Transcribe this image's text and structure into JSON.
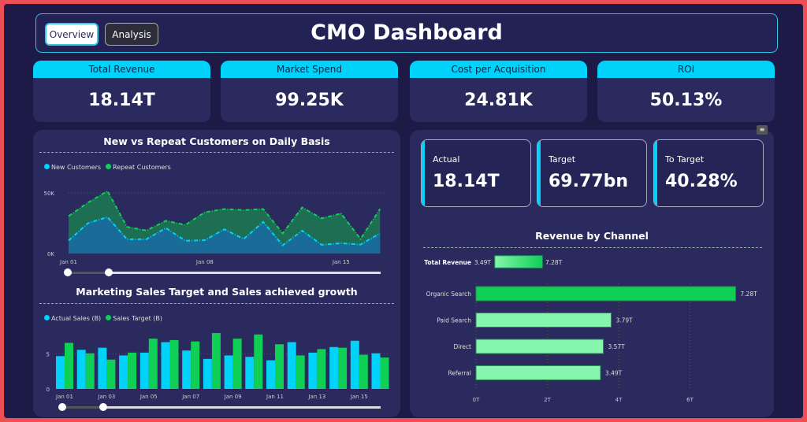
{
  "header": {
    "title": "CMO Dashboard",
    "tabs": [
      "Overview",
      "Analysis"
    ]
  },
  "kpis": [
    {
      "label": "Total Revenue",
      "value": "18.14T"
    },
    {
      "label": "Market Spend",
      "value": "99.25K"
    },
    {
      "label": "Cost per Acquisition",
      "value": "24.81K"
    },
    {
      "label": "ROI",
      "value": "50.13%"
    }
  ],
  "cards": [
    {
      "label": "Actual",
      "value": "18.14T"
    },
    {
      "label": "Target",
      "value": "69.77bn"
    },
    {
      "label": "To Target",
      "value": "40.28%"
    }
  ],
  "colors": {
    "cyan": "#00d2fa",
    "green": "#10cf55",
    "light_green": "#86f5ad",
    "bg": "#1d1a48",
    "panel": "#2a2a5e"
  },
  "chart_data": [
    {
      "type": "area",
      "title": "New vs Repeat Customers on Daily Basis",
      "stacked": true,
      "x": [
        "Jan 01",
        "Jan 02",
        "Jan 03",
        "Jan 04",
        "Jan 05",
        "Jan 06",
        "Jan 07",
        "Jan 08",
        "Jan 09",
        "Jan 10",
        "Jan 11",
        "Jan 12",
        "Jan 13",
        "Jan 14",
        "Jan 15",
        "Jan 16",
        "Jan 17"
      ],
      "xticks": [
        "Jan 01",
        "Jan 08",
        "Jan 15"
      ],
      "yticks": [
        "0K",
        "50K"
      ],
      "ylim": [
        0,
        50000
      ],
      "series": [
        {
          "name": "New Customers",
          "color": "#00d2fa",
          "values": [
            10700,
            25000,
            30000,
            11800,
            11800,
            21000,
            10500,
            11000,
            20000,
            12000,
            26000,
            6800,
            18800,
            7200,
            8500,
            7400,
            16600
          ]
        },
        {
          "name": "Repeat Customers",
          "color": "#10cf55",
          "values": [
            20100,
            17000,
            21500,
            10200,
            7200,
            6000,
            13100,
            23000,
            16700,
            23800,
            10700,
            9800,
            19200,
            21800,
            24500,
            4600,
            20100
          ]
        }
      ],
      "legend": "top-left"
    },
    {
      "type": "bar",
      "title": "Marketing Sales Target and Sales achieved growth",
      "x": [
        "Jan 01",
        "Jan 02",
        "Jan 03",
        "Jan 04",
        "Jan 05",
        "Jan 06",
        "Jan 07",
        "Jan 08",
        "Jan 09",
        "Jan 10",
        "Jan 11",
        "Jan 12",
        "Jan 13",
        "Jan 14",
        "Jan 15",
        "Jan 16"
      ],
      "xticks": [
        "Jan 01",
        "Jan 03",
        "Jan 05",
        "Jan 07",
        "Jan 09",
        "Jan 11",
        "Jan 13",
        "Jan 15"
      ],
      "yticks": [
        "0",
        "5"
      ],
      "ylim": [
        0,
        8
      ],
      "series": [
        {
          "name": "Actual Sales (B)",
          "color": "#00d2fa",
          "values": [
            4.7,
            5.6,
            5.9,
            4.8,
            5.2,
            6.7,
            5.5,
            4.3,
            4.8,
            4.6,
            4.1,
            6.7,
            5.2,
            6.0,
            6.9,
            5.1
          ]
        },
        {
          "name": "Sales Target (B)",
          "color": "#10cf55",
          "values": [
            6.6,
            5.1,
            4.2,
            5.2,
            7.2,
            7.0,
            6.8,
            8.0,
            7.2,
            7.8,
            6.4,
            4.8,
            5.7,
            5.9,
            4.9,
            4.5
          ]
        }
      ],
      "legend": "top-left"
    },
    {
      "type": "bar",
      "orientation": "horizontal",
      "title": "Revenue by Channel",
      "gradient_legend": {
        "label": "Total Revenue",
        "min": "3.49T",
        "max": "7.28T"
      },
      "categories": [
        "Organic Search",
        "Paid Search",
        "Direct",
        "Referral"
      ],
      "values": [
        7.28,
        3.79,
        3.57,
        3.49
      ],
      "labels": [
        "7.28T",
        "3.79T",
        "3.57T",
        "3.49T"
      ],
      "xticks": [
        "0T",
        "2T",
        "4T",
        "6T"
      ],
      "xlim": [
        0,
        7.3
      ],
      "unit": "T"
    }
  ]
}
